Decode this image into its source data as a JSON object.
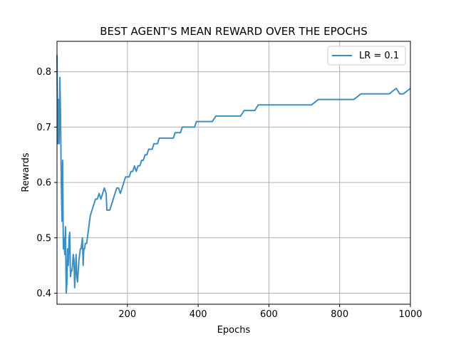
{
  "chart_data": {
    "type": "line",
    "title": "BEST AGENT'S MEAN REWARD OVER THE EPOCHS",
    "xlabel": "Epochs",
    "ylabel": "Rewards",
    "xlim": [
      1,
      1000
    ],
    "ylim": [
      0.38,
      0.855
    ],
    "x_ticks": [
      200,
      400,
      600,
      800,
      1000
    ],
    "x_tick_labels": [
      "200",
      "400",
      "600",
      "800",
      "1000"
    ],
    "y_ticks": [
      0.4,
      0.5,
      0.6,
      0.7,
      0.8
    ],
    "y_tick_labels": [
      "0.4",
      "0.5",
      "0.6",
      "0.7",
      "0.8"
    ],
    "grid": true,
    "legend_position": "top-right",
    "series": [
      {
        "name": "LR = 0.1",
        "color": "#3f8ec2",
        "x": [
          1,
          3,
          5,
          7,
          9,
          11,
          13,
          15,
          17,
          19,
          21,
          23,
          25,
          27,
          29,
          31,
          33,
          35,
          37,
          39,
          41,
          43,
          45,
          47,
          49,
          51,
          53,
          55,
          57,
          59,
          61,
          63,
          65,
          67,
          69,
          71,
          73,
          75,
          77,
          79,
          81,
          83,
          85,
          87,
          89,
          91,
          95,
          100,
          105,
          110,
          115,
          120,
          125,
          130,
          135,
          140,
          142,
          145,
          150,
          155,
          160,
          165,
          170,
          175,
          180,
          185,
          190,
          195,
          200,
          205,
          210,
          215,
          220,
          225,
          230,
          235,
          240,
          245,
          250,
          255,
          260,
          265,
          270,
          275,
          280,
          285,
          290,
          295,
          300,
          305,
          310,
          315,
          320,
          325,
          330,
          335,
          340,
          345,
          350,
          355,
          360,
          365,
          370,
          375,
          380,
          385,
          390,
          395,
          400,
          405,
          410,
          415,
          420,
          430,
          440,
          450,
          460,
          470,
          480,
          490,
          500,
          510,
          520,
          530,
          540,
          550,
          560,
          570,
          580,
          590,
          600,
          610,
          615,
          620,
          630,
          640,
          660,
          680,
          700,
          710,
          720,
          740,
          760,
          780,
          800,
          820,
          840,
          860,
          880,
          900,
          920,
          940,
          960,
          970,
          980,
          1000
        ],
        "values": [
          0.83,
          0.67,
          0.75,
          0.67,
          0.79,
          0.72,
          0.6,
          0.53,
          0.64,
          0.48,
          0.5,
          0.47,
          0.52,
          0.4,
          0.42,
          0.48,
          0.45,
          0.5,
          0.51,
          0.43,
          0.44,
          0.44,
          0.45,
          0.47,
          0.46,
          0.41,
          0.44,
          0.47,
          0.43,
          0.42,
          0.44,
          0.46,
          0.47,
          0.48,
          0.48,
          0.49,
          0.5,
          0.45,
          0.48,
          0.48,
          0.49,
          0.49,
          0.49,
          0.5,
          0.51,
          0.52,
          0.54,
          0.55,
          0.56,
          0.57,
          0.57,
          0.58,
          0.57,
          0.58,
          0.59,
          0.58,
          0.55,
          0.55,
          0.55,
          0.56,
          0.57,
          0.58,
          0.59,
          0.59,
          0.58,
          0.59,
          0.6,
          0.61,
          0.61,
          0.61,
          0.62,
          0.62,
          0.63,
          0.62,
          0.63,
          0.63,
          0.64,
          0.64,
          0.65,
          0.65,
          0.66,
          0.66,
          0.66,
          0.67,
          0.67,
          0.67,
          0.68,
          0.68,
          0.68,
          0.68,
          0.68,
          0.68,
          0.68,
          0.68,
          0.68,
          0.69,
          0.69,
          0.69,
          0.69,
          0.7,
          0.7,
          0.7,
          0.7,
          0.7,
          0.7,
          0.7,
          0.7,
          0.71,
          0.71,
          0.71,
          0.71,
          0.71,
          0.71,
          0.71,
          0.71,
          0.72,
          0.72,
          0.72,
          0.72,
          0.72,
          0.72,
          0.72,
          0.72,
          0.73,
          0.73,
          0.73,
          0.73,
          0.74,
          0.74,
          0.74,
          0.74,
          0.74,
          0.74,
          0.74,
          0.74,
          0.74,
          0.74,
          0.74,
          0.74,
          0.74,
          0.74,
          0.75,
          0.75,
          0.75,
          0.75,
          0.75,
          0.75,
          0.76,
          0.76,
          0.76,
          0.76,
          0.76,
          0.77,
          0.76,
          0.76,
          0.77
        ]
      }
    ]
  }
}
